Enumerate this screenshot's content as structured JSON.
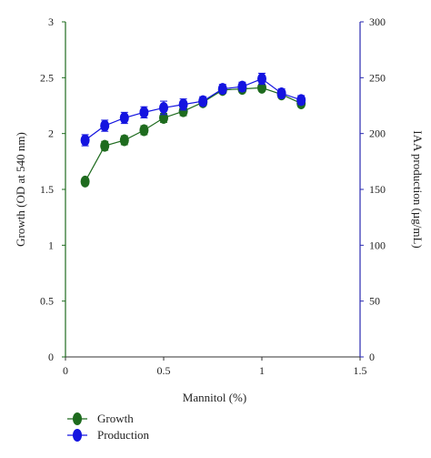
{
  "chart_data": {
    "type": "line",
    "xlabel": "Mannitol (%)",
    "ylabel_left": "Growth (OD at 540 nm)",
    "ylabel_right": "IAA production (µg/mL)",
    "xlim": [
      0,
      1.5
    ],
    "ylim_left": [
      0,
      3
    ],
    "ylim_right": [
      0,
      300
    ],
    "x_ticks": [
      0,
      0.5,
      1,
      1.5
    ],
    "x_tick_labels": [
      "0",
      "0.5",
      "1",
      "1.5"
    ],
    "y_left_ticks": [
      0,
      0.5,
      1,
      1.5,
      2,
      2.5,
      3
    ],
    "y_left_tick_labels": [
      "0",
      "0.5",
      "1",
      "1.5",
      "2",
      "2.5",
      "3"
    ],
    "y_right_ticks": [
      0,
      50,
      100,
      150,
      200,
      250,
      300
    ],
    "y_right_tick_labels": [
      "0",
      "50",
      "100",
      "150",
      "200",
      "250",
      "300"
    ],
    "grid": false,
    "legend_position": "bottom-left",
    "x": [
      0.1,
      0.2,
      0.3,
      0.4,
      0.5,
      0.6,
      0.7,
      0.8,
      0.9,
      1.0,
      1.1,
      1.2
    ],
    "series": [
      {
        "name": "Growth",
        "axis": "left",
        "color": "#1e6b1e",
        "values": [
          1.57,
          1.89,
          1.94,
          2.03,
          2.14,
          2.2,
          2.28,
          2.39,
          2.4,
          2.41,
          2.35,
          2.27
        ],
        "errors": [
          0.03,
          0.04,
          0.04,
          0.04,
          0.04,
          0.04,
          0.03,
          0.03,
          0.03,
          0.03,
          0.03,
          0.03
        ]
      },
      {
        "name": "Production",
        "axis": "right",
        "color": "#1414e0",
        "values": [
          194,
          207,
          214,
          219,
          223,
          226,
          229,
          240,
          242,
          249,
          236,
          230
        ],
        "errors": [
          5,
          5,
          5,
          5,
          6,
          5,
          4,
          4,
          4,
          5,
          4,
          4
        ]
      }
    ],
    "axis_colors": {
      "left": "#1e6b1e",
      "right": "#2a2ab0",
      "bottom": "#333333"
    }
  }
}
